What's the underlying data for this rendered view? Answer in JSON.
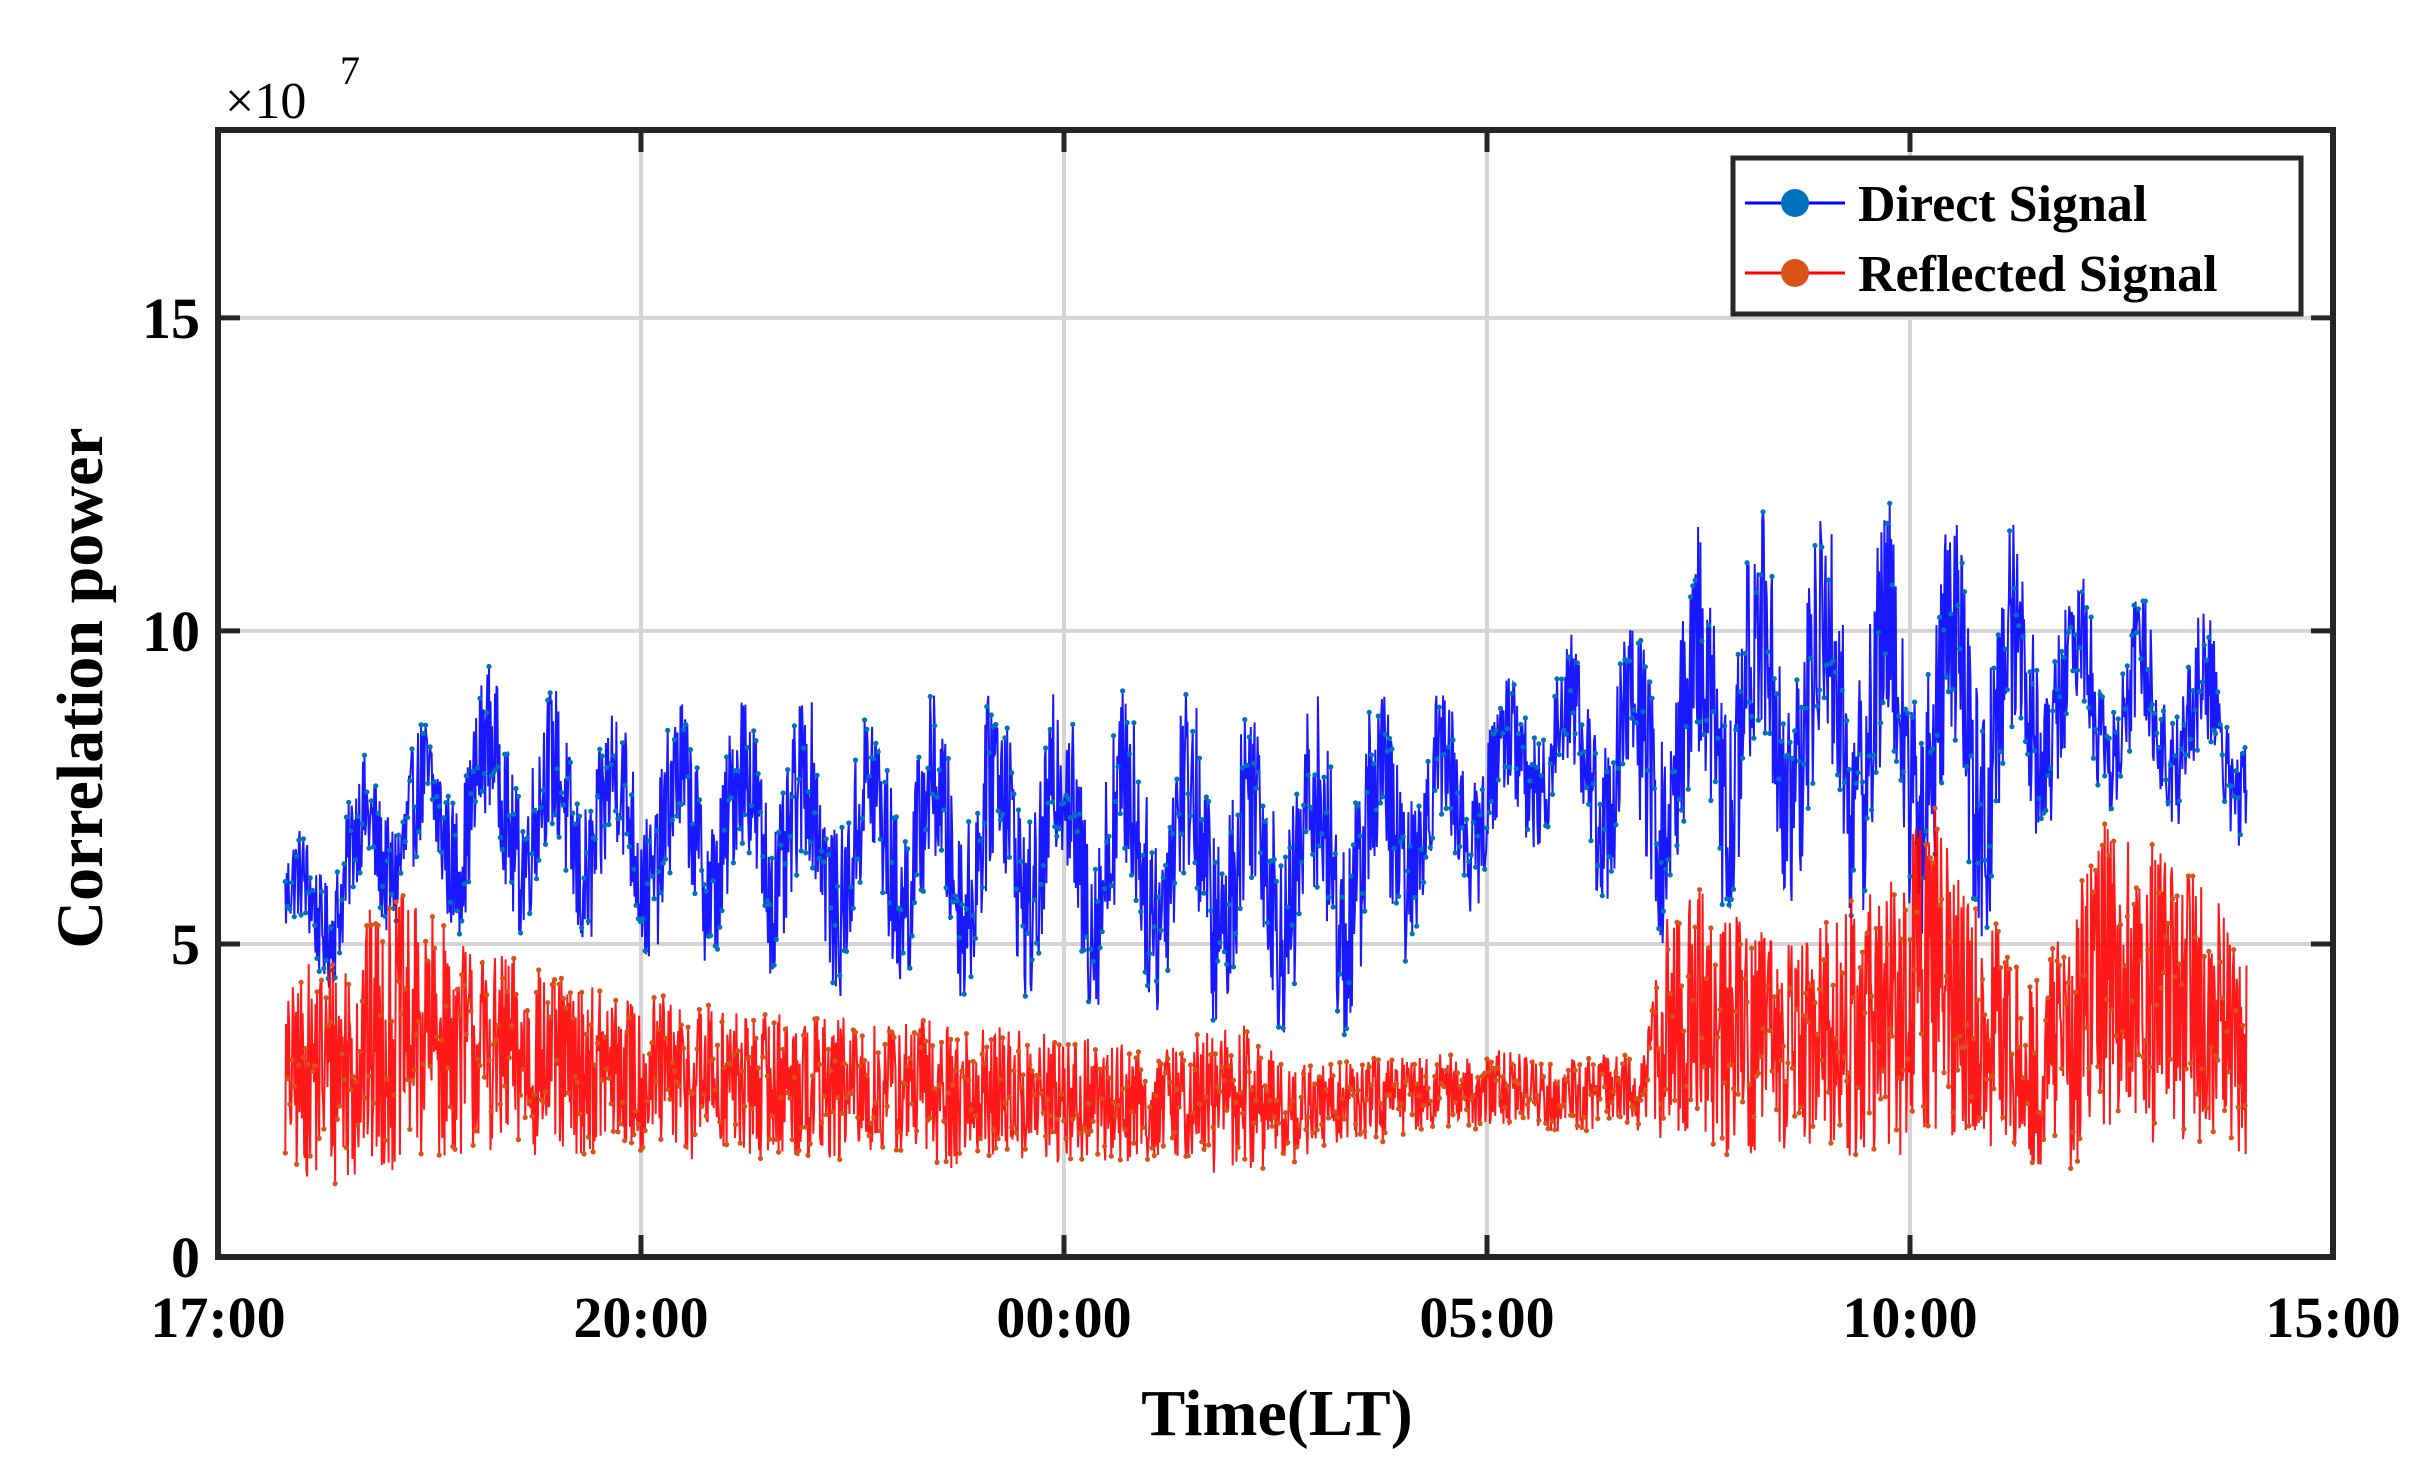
{
  "chart_data": {
    "type": "line",
    "title": "",
    "xlabel": "Time(LT)",
    "ylabel": "Correlation power",
    "y_exponent_label": "×10",
    "y_exponent_power": "7",
    "x_tick_labels": [
      "17:00",
      "20:00",
      "00:00",
      "05:00",
      "10:00",
      "15:00"
    ],
    "y_ticks": [
      0,
      5,
      10,
      15
    ],
    "ylim": [
      0,
      18
    ],
    "xlim": [
      0,
      22
    ],
    "grid": true,
    "legend_position": "top-right",
    "marker": "circle",
    "series": [
      {
        "name": "Direct Signal",
        "color": "#0000ff",
        "marker_color": "#0072bd",
        "x": [
          0.7,
          1.0,
          1.3,
          1.6,
          1.9,
          2.2,
          2.5,
          2.8,
          3.1,
          3.4,
          3.7,
          4.0,
          4.3,
          4.6,
          4.9,
          5.2,
          5.5,
          5.8,
          6.1,
          6.4,
          6.7,
          7.0,
          7.3,
          7.6,
          7.9,
          8.2,
          8.5,
          8.8,
          9.1,
          9.4,
          9.7,
          10.0,
          10.3,
          10.6,
          10.9,
          11.2,
          11.5,
          11.8,
          12.1,
          12.4,
          12.7,
          13.0,
          13.3,
          13.6,
          13.9,
          14.2,
          14.5,
          14.8,
          15.1,
          15.4,
          15.7,
          16.0,
          16.3,
          16.6,
          16.9,
          17.2,
          17.5,
          17.8,
          18.1,
          18.4,
          18.7,
          19.0,
          19.3,
          19.6,
          19.9,
          20.2,
          20.5,
          20.8,
          21.1
        ],
        "center": [
          5.5,
          5.6,
          6.0,
          6.5,
          6.9,
          6.8,
          7.1,
          7.4,
          7.2,
          7.0,
          7.0,
          6.8,
          6.9,
          6.7,
          6.8,
          6.8,
          6.9,
          6.8,
          6.7,
          6.5,
          6.5,
          6.7,
          6.6,
          6.5,
          6.7,
          6.8,
          6.6,
          6.7,
          6.6,
          6.4,
          6.6,
          6.5,
          6.4,
          6.3,
          6.4,
          6.3,
          6.2,
          6.4,
          6.6,
          7.0,
          7.2,
          7.3,
          7.5,
          8.0,
          8.2,
          8.1,
          7.8,
          7.6,
          8.0,
          8.4,
          8.6,
          8.8,
          8.6,
          8.7,
          8.8,
          8.6,
          8.6,
          8.4,
          8.5,
          8.5,
          8.8,
          9.0,
          9.1,
          8.9,
          8.8,
          8.6,
          8.6,
          8.4,
          8.0
        ],
        "amplitude": [
          1.0,
          1.2,
          1.3,
          1.4,
          1.4,
          1.5,
          1.6,
          1.7,
          1.7,
          1.7,
          1.8,
          1.8,
          1.7,
          1.8,
          1.8,
          1.8,
          1.9,
          1.9,
          1.9,
          1.9,
          1.9,
          2.0,
          2.0,
          2.0,
          2.1,
          2.1,
          2.1,
          2.1,
          2.2,
          2.2,
          2.2,
          2.2,
          2.3,
          2.3,
          2.3,
          2.3,
          2.3,
          2.4,
          2.2,
          1.8,
          1.6,
          1.5,
          1.4,
          1.4,
          1.5,
          1.7,
          2.0,
          2.3,
          2.6,
          2.7,
          2.8,
          2.8,
          2.8,
          2.8,
          2.9,
          2.9,
          2.9,
          2.9,
          2.9,
          2.8,
          2.6,
          2.0,
          1.6,
          1.5,
          1.5,
          1.5,
          1.5,
          1.5,
          1.4
        ]
      },
      {
        "name": "Reflected Signal",
        "color": "#ff0000",
        "marker_color": "#d95319",
        "x": [
          0.7,
          1.0,
          1.3,
          1.6,
          1.9,
          2.2,
          2.5,
          2.8,
          3.1,
          3.4,
          3.7,
          4.0,
          4.3,
          4.6,
          4.9,
          5.2,
          5.5,
          5.8,
          6.1,
          6.4,
          6.7,
          7.0,
          7.3,
          7.6,
          7.9,
          8.2,
          8.5,
          8.8,
          9.1,
          9.4,
          9.7,
          10.0,
          10.3,
          10.6,
          10.9,
          11.2,
          11.5,
          11.8,
          12.1,
          12.4,
          12.7,
          13.0,
          13.3,
          13.6,
          13.9,
          14.2,
          14.5,
          14.8,
          15.1,
          15.4,
          15.7,
          16.0,
          16.3,
          16.6,
          16.9,
          17.2,
          17.5,
          17.8,
          18.1,
          18.4,
          18.7,
          19.0,
          19.3,
          19.6,
          19.9,
          20.2,
          20.5,
          20.8,
          21.1
        ],
        "center": [
          2.8,
          3.0,
          3.1,
          3.4,
          3.6,
          3.5,
          3.4,
          3.3,
          3.2,
          3.1,
          3.0,
          3.0,
          2.9,
          2.9,
          2.8,
          2.9,
          2.7,
          2.8,
          2.7,
          2.7,
          2.6,
          2.7,
          2.7,
          2.6,
          2.6,
          2.6,
          2.5,
          2.5,
          2.5,
          2.5,
          2.4,
          2.5,
          2.5,
          2.6,
          2.4,
          2.3,
          2.4,
          2.5,
          2.5,
          2.6,
          2.7,
          2.6,
          2.7,
          2.7,
          2.6,
          2.6,
          2.7,
          2.6,
          3.8,
          3.9,
          3.6,
          3.4,
          3.4,
          3.5,
          3.6,
          3.8,
          4.2,
          4.6,
          4.0,
          3.6,
          3.2,
          3.0,
          3.6,
          4.6,
          4.5,
          4.2,
          4.0,
          3.8,
          3.6
        ],
        "amplitude": [
          1.4,
          1.8,
          2.0,
          2.2,
          2.2,
          2.0,
          1.8,
          1.6,
          1.6,
          1.5,
          1.4,
          1.3,
          1.3,
          1.3,
          1.3,
          1.2,
          1.2,
          1.2,
          1.2,
          1.2,
          1.1,
          1.1,
          1.2,
          1.2,
          1.1,
          1.1,
          1.1,
          1.0,
          1.0,
          1.0,
          0.9,
          0.9,
          1.2,
          1.2,
          1.0,
          0.8,
          0.7,
          0.7,
          0.7,
          0.6,
          0.6,
          0.6,
          0.6,
          0.6,
          0.6,
          0.6,
          0.6,
          0.6,
          2.0,
          2.0,
          2.0,
          1.8,
          1.8,
          1.8,
          2.0,
          2.2,
          2.6,
          2.8,
          2.4,
          2.0,
          1.6,
          1.6,
          2.2,
          2.6,
          2.6,
          2.4,
          2.2,
          2.0,
          2.0
        ]
      }
    ],
    "legend": [
      {
        "label": "Direct Signal",
        "line_color": "#0000ff",
        "marker_color": "#0072bd"
      },
      {
        "label": "Reflected Signal",
        "line_color": "#ff0000",
        "marker_color": "#d95319"
      }
    ]
  }
}
